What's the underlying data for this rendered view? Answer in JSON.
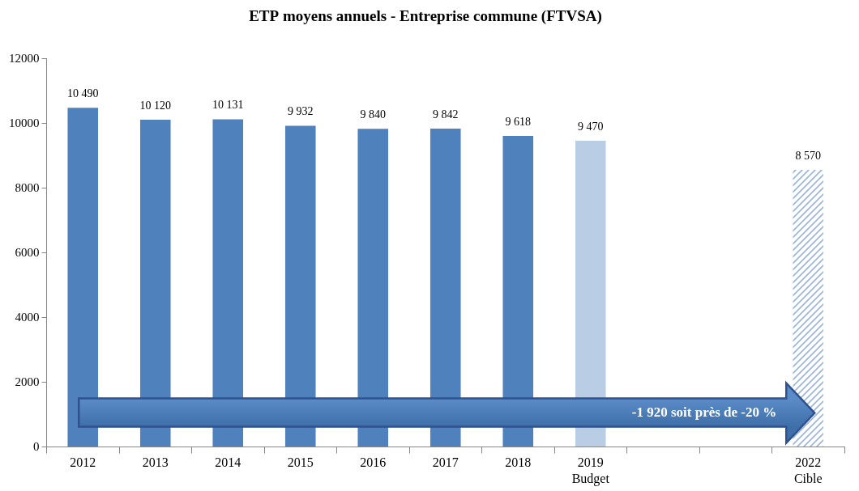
{
  "chart_data": {
    "type": "bar",
    "title": "ETP moyens annuels - Entreprise commune (FTVSA)",
    "categories": [
      "2012",
      "2013",
      "2014",
      "2015",
      "2016",
      "2017",
      "2018",
      "2019\nBudget",
      null,
      null,
      "2022\nCible"
    ],
    "series": [
      {
        "values": [
          10490,
          10120,
          10131,
          9932,
          9840,
          9842,
          9618,
          9470,
          null,
          null,
          null
        ],
        "value_labels": [
          "10 490",
          "10 120",
          "10 131",
          "9 932",
          "9 840",
          "9 842",
          "9 618",
          "9 470",
          null,
          null,
          null
        ],
        "colors": [
          "#4f81bd",
          "#4f81bd",
          "#4f81bd",
          "#4f81bd",
          "#4f81bd",
          "#4f81bd",
          "#4f81bd",
          "#b9cde5",
          null,
          null,
          null
        ]
      },
      {
        "values": [
          null,
          null,
          null,
          null,
          null,
          null,
          null,
          null,
          null,
          null,
          8570
        ],
        "value_labels": [
          null,
          null,
          null,
          null,
          null,
          null,
          null,
          null,
          null,
          null,
          "8 570"
        ],
        "color": "#9db5d8",
        "marker": "hatch"
      }
    ],
    "ylim": [
      0,
      12000
    ],
    "yticks": [
      0,
      2000,
      4000,
      6000,
      8000,
      10000,
      12000
    ],
    "grid": false,
    "data_labels": true,
    "annotation": "-1 920 soit près de -20 %"
  }
}
